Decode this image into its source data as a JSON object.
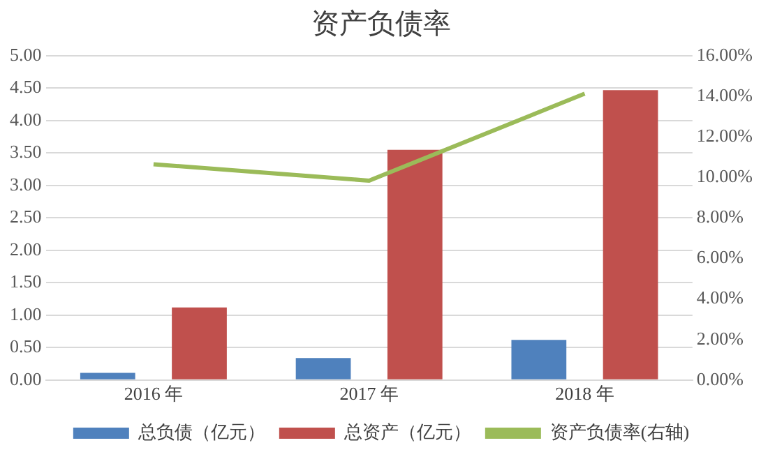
{
  "chart_data": {
    "type": "bar",
    "title": "资产负债率",
    "categories": [
      "2016 年",
      "2017 年",
      "2018 年"
    ],
    "series": [
      {
        "name": "总负债（亿元）",
        "color": "#4f81bd",
        "values": [
          0.11,
          0.34,
          0.62
        ]
      },
      {
        "name": "总资产（亿元）",
        "color": "#c0504d",
        "values": [
          1.12,
          3.55,
          4.47
        ]
      },
      {
        "name": "资产负债率(右轴)",
        "type": "line",
        "axis": "y2",
        "color": "#9bbb59",
        "values": [
          10.65,
          9.84,
          14.13
        ]
      }
    ],
    "ylim": [
      0,
      5
    ],
    "yticks": [
      {
        "value": 0,
        "label": "0.00"
      },
      {
        "value": 0.5,
        "label": "0.50"
      },
      {
        "value": 1,
        "label": "1.00"
      },
      {
        "value": 1.5,
        "label": "1.50"
      },
      {
        "value": 2,
        "label": "2.00"
      },
      {
        "value": 2.5,
        "label": "2.50"
      },
      {
        "value": 3,
        "label": "3.00"
      },
      {
        "value": 3.5,
        "label": "3.50"
      },
      {
        "value": 4,
        "label": "4.00"
      },
      {
        "value": 4.5,
        "label": "4.50"
      },
      {
        "value": 5,
        "label": "5.00"
      }
    ],
    "y2lim": [
      0,
      16
    ],
    "y2ticks": [
      {
        "value": 0,
        "label": "0.00%"
      },
      {
        "value": 2,
        "label": "2.00%"
      },
      {
        "value": 4,
        "label": "4.00%"
      },
      {
        "value": 6,
        "label": "6.00%"
      },
      {
        "value": 8,
        "label": "8.00%"
      },
      {
        "value": 10,
        "label": "10.00%"
      },
      {
        "value": 12,
        "label": "12.00%"
      },
      {
        "value": 14,
        "label": "14.00%"
      },
      {
        "value": 16,
        "label": "16.00%"
      }
    ],
    "grid": "y",
    "legend": "bottom",
    "marker": "none"
  }
}
